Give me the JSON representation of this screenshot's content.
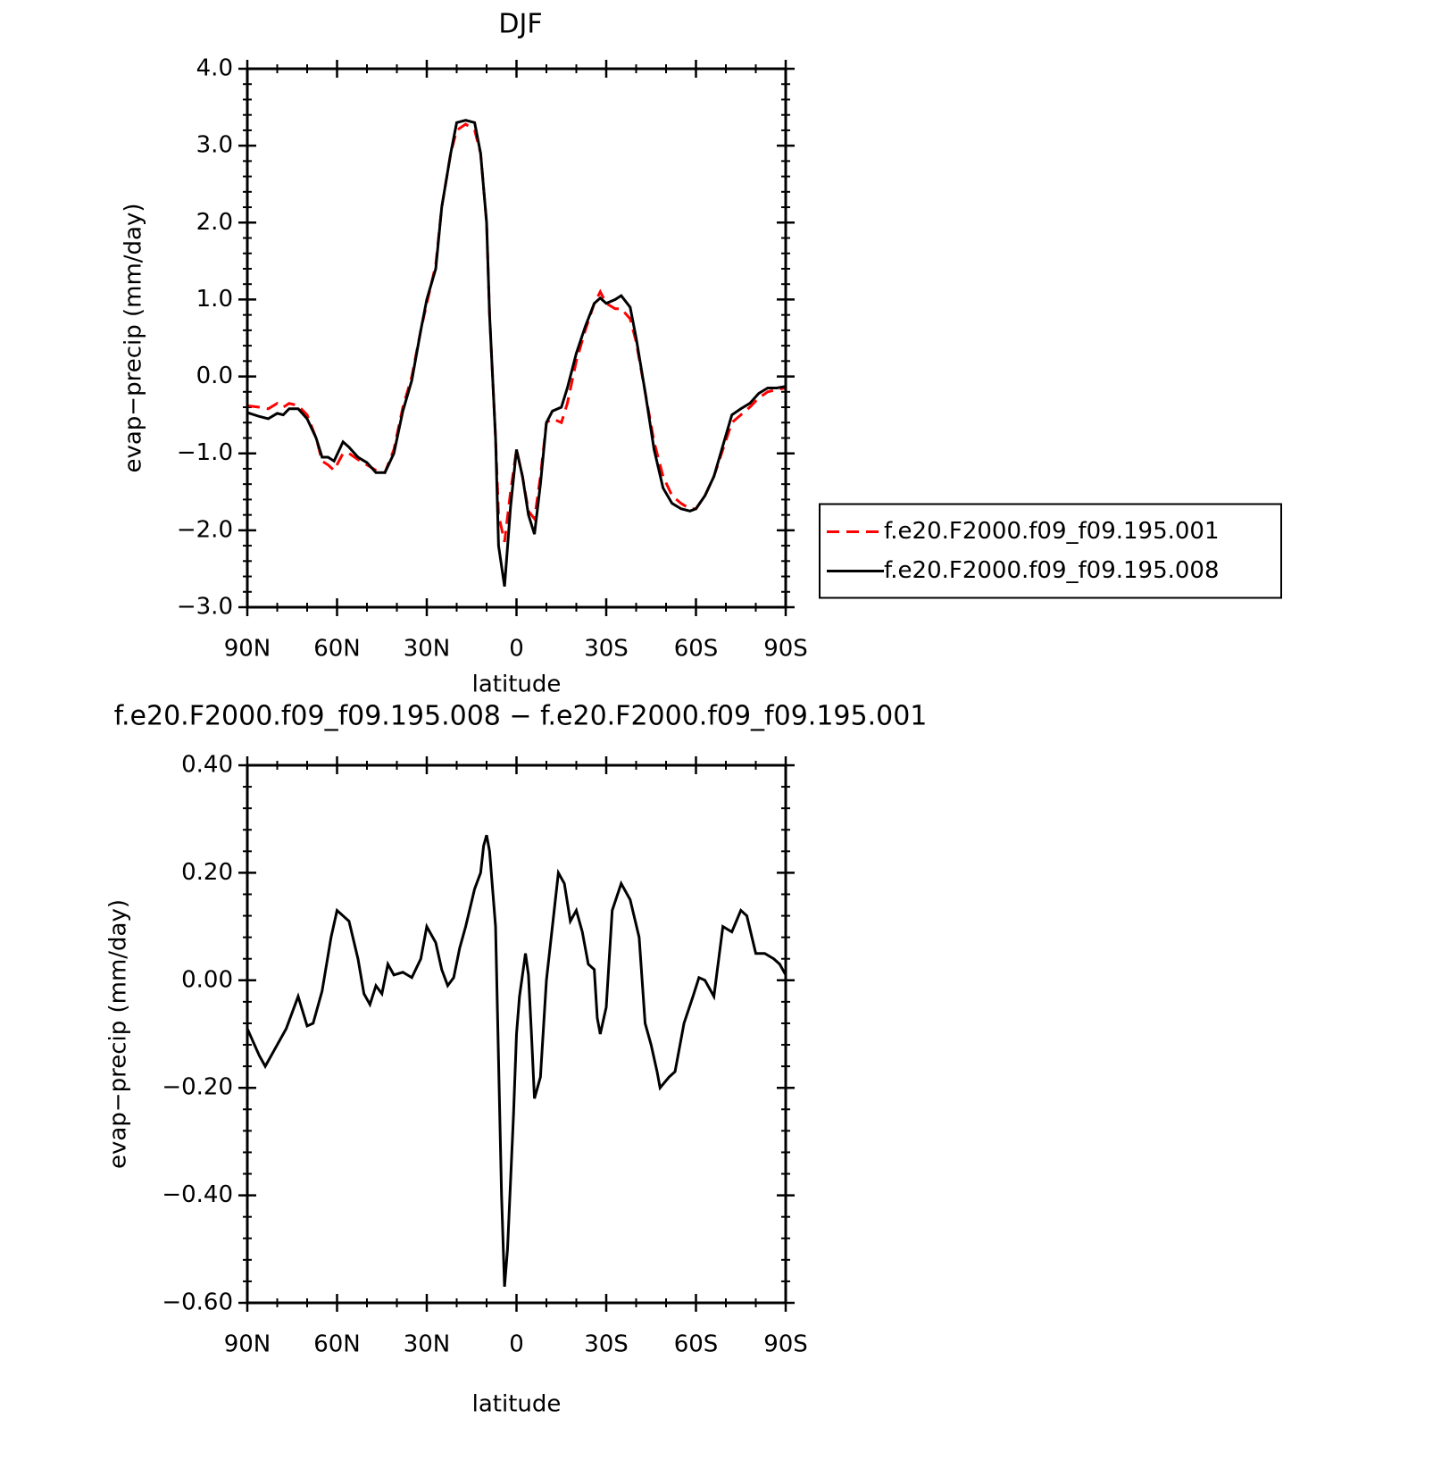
{
  "chart_data": [
    {
      "type": "line",
      "title": "DJF",
      "ylabel": "evap−precip (mm/day)",
      "xlabel": "latitude",
      "x": [
        90,
        86,
        83,
        80,
        78,
        76,
        73,
        70,
        67,
        65,
        63,
        61,
        58,
        56,
        53,
        50,
        47,
        44,
        41,
        38,
        35,
        32,
        30,
        27,
        25,
        22,
        20,
        17,
        14,
        12,
        10,
        9,
        7,
        6,
        4,
        2,
        0,
        -2,
        -4,
        -6,
        -8,
        -10,
        -12,
        -15,
        -17,
        -20,
        -23,
        -26,
        -28,
        -30,
        -33,
        -35,
        -38,
        -40,
        -43,
        -46,
        -49,
        -52,
        -55,
        -58,
        -60,
        -63,
        -66,
        -69,
        -72,
        -75,
        -78,
        -81,
        -84,
        -87,
        -90
      ],
      "series": [
        {
          "name": "f.e20.F2000.f09_f09.195.001",
          "color": "#ff0000",
          "linestyle": "dashed",
          "values": [
            -0.38,
            -0.4,
            -0.42,
            -0.35,
            -0.4,
            -0.35,
            -0.38,
            -0.5,
            -0.8,
            -1.1,
            -1.15,
            -1.22,
            -1.0,
            -1.0,
            -1.08,
            -1.15,
            -1.22,
            -1.25,
            -0.95,
            -0.4,
            0.0,
            0.6,
            0.95,
            1.45,
            2.2,
            2.9,
            3.2,
            3.28,
            3.2,
            2.9,
            2.0,
            0.8,
            -0.8,
            -1.8,
            -2.15,
            -1.5,
            -0.95,
            -1.3,
            -1.75,
            -1.85,
            -1.3,
            -0.6,
            -0.55,
            -0.6,
            -0.35,
            0.2,
            0.6,
            0.95,
            1.1,
            0.95,
            0.88,
            0.88,
            0.75,
            0.45,
            -0.2,
            -0.85,
            -1.3,
            -1.55,
            -1.65,
            -1.72,
            -1.72,
            -1.55,
            -1.3,
            -0.95,
            -0.6,
            -0.5,
            -0.4,
            -0.28,
            -0.2,
            -0.17,
            -0.15
          ]
        },
        {
          "name": "f.e20.F2000.f09_f09.195.008",
          "color": "#000000",
          "linestyle": "solid",
          "values": [
            -0.47,
            -0.52,
            -0.55,
            -0.48,
            -0.5,
            -0.42,
            -0.42,
            -0.55,
            -0.8,
            -1.05,
            -1.05,
            -1.1,
            -0.85,
            -0.92,
            -1.05,
            -1.12,
            -1.25,
            -1.25,
            -1.0,
            -0.45,
            -0.05,
            0.6,
            1.0,
            1.4,
            2.2,
            2.9,
            3.3,
            3.33,
            3.3,
            2.9,
            2.0,
            0.8,
            -0.8,
            -2.2,
            -2.73,
            -1.7,
            -0.95,
            -1.3,
            -1.8,
            -2.05,
            -1.4,
            -0.6,
            -0.45,
            -0.4,
            -0.15,
            0.3,
            0.65,
            0.95,
            1.02,
            0.95,
            1.0,
            1.05,
            0.9,
            0.5,
            -0.2,
            -0.95,
            -1.45,
            -1.65,
            -1.72,
            -1.75,
            -1.72,
            -1.55,
            -1.3,
            -0.9,
            -0.5,
            -0.42,
            -0.35,
            -0.22,
            -0.15,
            -0.15,
            -0.13
          ]
        }
      ],
      "xlim": [
        90,
        -90
      ],
      "xticks": [
        {
          "value": 90,
          "label": "90N"
        },
        {
          "value": 60,
          "label": "60N"
        },
        {
          "value": 30,
          "label": "30N"
        },
        0,
        {
          "value": -30,
          "label": "30S"
        },
        {
          "value": -60,
          "label": "60S"
        },
        {
          "value": -90,
          "label": "90S"
        }
      ],
      "ylim": [
        -3,
        4
      ],
      "yticks": [
        {
          "value": -3,
          "label": "−3.0"
        },
        {
          "value": -2,
          "label": "−2.0"
        },
        {
          "value": -1,
          "label": "−1.0"
        },
        {
          "value": 0,
          "label": "0.0"
        },
        {
          "value": 1,
          "label": "1.0"
        },
        {
          "value": 2,
          "label": "2.0"
        },
        {
          "value": 3,
          "label": "3.0"
        },
        {
          "value": 4,
          "label": "4.0"
        }
      ],
      "legend": "right"
    },
    {
      "type": "line",
      "title": "f.e20.F2000.f09_f09.195.008 − f.e20.F2000.f09_f09.195.001",
      "ylabel": "evap−precip (mm/day)",
      "xlabel": "latitude",
      "x": [
        90,
        86,
        84,
        81,
        77,
        73,
        70,
        68,
        65,
        62,
        60,
        58,
        56,
        53,
        51,
        49,
        47,
        45,
        43,
        41,
        38,
        35,
        32,
        30,
        27,
        25,
        23,
        21,
        19,
        17,
        14,
        12,
        11,
        10,
        9,
        7,
        6,
        5,
        4,
        3,
        1,
        0,
        -1,
        -3,
        -4,
        -5,
        -6,
        -8,
        -10,
        -12,
        -14,
        -16,
        -18,
        -20,
        -22,
        -24,
        -26,
        -27,
        -28,
        -30,
        -32,
        -35,
        -38,
        -41,
        -43,
        -45,
        -47,
        -48,
        -51,
        -53,
        -56,
        -59,
        -61,
        -63,
        -66,
        -69,
        -72,
        -75,
        -77,
        -80,
        -83,
        -86,
        -88,
        -90
      ],
      "series": [
        {
          "color": "#000000",
          "linestyle": "solid",
          "values": [
            -0.09,
            -0.14,
            -0.16,
            -0.13,
            -0.09,
            -0.03,
            -0.085,
            -0.08,
            -0.02,
            0.08,
            0.13,
            0.12,
            0.11,
            0.04,
            -0.025,
            -0.045,
            -0.01,
            -0.025,
            0.03,
            0.01,
            0.015,
            0.005,
            0.04,
            0.1,
            0.07,
            0.02,
            -0.01,
            0.005,
            0.06,
            0.1,
            0.17,
            0.2,
            0.25,
            0.27,
            0.24,
            0.1,
            -0.15,
            -0.4,
            -0.57,
            -0.5,
            -0.25,
            -0.1,
            -0.03,
            0.05,
            0.01,
            -0.1,
            -0.22,
            -0.18,
            0.0,
            0.1,
            0.2,
            0.18,
            0.11,
            0.13,
            0.09,
            0.03,
            0.02,
            -0.07,
            -0.1,
            -0.05,
            0.13,
            0.18,
            0.15,
            0.08,
            -0.08,
            -0.12,
            -0.17,
            -0.2,
            -0.18,
            -0.17,
            -0.08,
            -0.03,
            0.005,
            0.0,
            -0.03,
            0.1,
            0.09,
            0.13,
            0.12,
            0.05,
            0.05,
            0.04,
            0.03,
            0.01
          ]
        }
      ],
      "xlim": [
        90,
        -90
      ],
      "xticks": [
        {
          "value": 90,
          "label": "90N"
        },
        {
          "value": 60,
          "label": "60N"
        },
        {
          "value": 30,
          "label": "30N"
        },
        0,
        {
          "value": -30,
          "label": "30S"
        },
        {
          "value": -60,
          "label": "60S"
        },
        {
          "value": -90,
          "label": "90S"
        }
      ],
      "ylim": [
        -0.6,
        0.4
      ],
      "yticks": [
        {
          "value": -0.6,
          "label": "−0.60"
        },
        {
          "value": -0.4,
          "label": "−0.40"
        },
        {
          "value": -0.2,
          "label": "−0.20"
        },
        {
          "value": 0,
          "label": "0.00"
        },
        {
          "value": 0.2,
          "label": "0.20"
        },
        {
          "value": 0.4,
          "label": "0.40"
        }
      ]
    }
  ]
}
